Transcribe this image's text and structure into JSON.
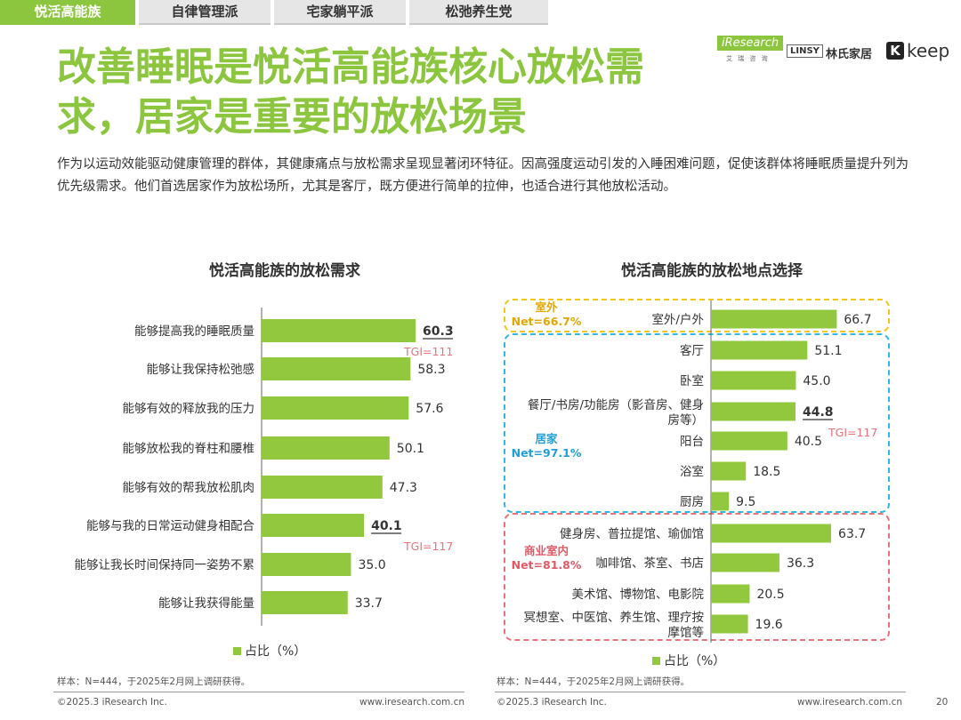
{
  "tabs": [
    "悦活高能族",
    "自律管理派",
    "宅家躺平派",
    "松弛养生党"
  ],
  "logos": {
    "iresearch": "iResearch",
    "iresearch_sub": "艾 瑞 咨 询",
    "linsy_box": "LINSY",
    "linsy_cn": "林氏家居",
    "keep_k": "K",
    "keep": "keep"
  },
  "title": "改善睡眠是悦活高能族核心放松需求，居家是重要的放松场景",
  "subtitle": "作为以运动效能驱动健康管理的群体，其健康痛点与放松需求呈现显著闭环特征。因高强度运动引发的入睡困难问题，促使该群体将睡眠质量提升列为优先级需求。他们首选居家作为放松场所，尤其是客厅，既方便进行简单的拉伸，也适合进行其他放松活动。",
  "colors": {
    "accent": "#8cc63f",
    "bar": "#92c83e",
    "tgi": "#e8737a",
    "outdoor": "#f5c518",
    "home": "#33b6e8",
    "commercial": "#e8737a"
  },
  "chart_data": [
    {
      "type": "bar",
      "orientation": "horizontal",
      "title": "悦活高能族的放松需求",
      "categories": [
        "能够提高我的睡眠质量",
        "能够让我保持松弛感",
        "能够有效的释放我的压力",
        "能够放松我的脊柱和腰椎",
        "能够有效的帮我放松肌肉",
        "能够与我的日常运动健身相配合",
        "能够让我长时间保持同一姿势不累",
        "能够让我获得能量"
      ],
      "values": [
        60.3,
        58.3,
        57.6,
        50.1,
        47.3,
        40.1,
        35.0,
        33.7
      ],
      "value_labels": [
        "60.3",
        "58.3",
        "57.6",
        "50.1",
        "47.3",
        "40.1",
        "35.0",
        "33.7"
      ],
      "highlight": [
        0,
        5
      ],
      "tgi": [
        {
          "index": 0,
          "label": "TGI=111"
        },
        {
          "index": 5,
          "label": "TGI=117"
        }
      ],
      "legend": "占比（%）",
      "xlim": [
        0,
        100
      ]
    },
    {
      "type": "bar",
      "orientation": "horizontal",
      "title": "悦活高能族的放松地点选择",
      "categories": [
        "室外/户外",
        "客厅",
        "卧室",
        "餐厅/书房/功能房（影音房、健身房等）",
        "阳台",
        "浴室",
        "厨房",
        "健身房、普拉提馆、瑜伽馆",
        "咖啡馆、茶室、书店",
        "美术馆、博物馆、电影院",
        "冥想室、中医馆、养生馆、理疗按摩馆等"
      ],
      "category_lines": [
        [
          "室外/户外"
        ],
        [
          "客厅"
        ],
        [
          "卧室"
        ],
        [
          "餐厅/书房/功能房（影音房、健身",
          "房等）"
        ],
        [
          "阳台"
        ],
        [
          "浴室"
        ],
        [
          "厨房"
        ],
        [
          "健身房、普拉提馆、瑜伽馆"
        ],
        [
          "咖啡馆、茶室、书店"
        ],
        [
          "美术馆、博物馆、电影院"
        ],
        [
          "冥想室、中医馆、养生馆、理疗按",
          "摩馆等"
        ]
      ],
      "values": [
        66.7,
        51.1,
        45.0,
        44.8,
        40.5,
        18.5,
        9.5,
        63.7,
        36.3,
        20.5,
        19.6
      ],
      "value_labels": [
        "66.7",
        "51.1",
        "45.0",
        "44.8",
        "40.5",
        "18.5",
        "9.5",
        "63.7",
        "36.3",
        "20.5",
        "19.6"
      ],
      "highlight": [
        3
      ],
      "tgi": [
        {
          "index": 3,
          "label": "TGI=117"
        }
      ],
      "groups": [
        {
          "name": "室外",
          "net": "Net=66.7%",
          "color_key": "outdoor"
        },
        {
          "name": "居家",
          "net": "Net=97.1%",
          "color_key": "home"
        },
        {
          "name": "商业室内",
          "net": "Net=81.8%",
          "color_key": "commercial"
        }
      ],
      "legend": "占比（%）",
      "xlim": [
        0,
        100
      ]
    }
  ],
  "footer": {
    "sample_left": "样本：N=444，于2025年2月网上调研获得。",
    "sample_right": "样本：N=444，于2025年2月网上调研获得。",
    "copyright_left": "©2025.3 iResearch Inc.",
    "url_left": "www.iresearch.com.cn",
    "copyright_right": "©2025.3 iResearch Inc.",
    "url_right": "www.iresearch.com.cn",
    "page": "20"
  }
}
